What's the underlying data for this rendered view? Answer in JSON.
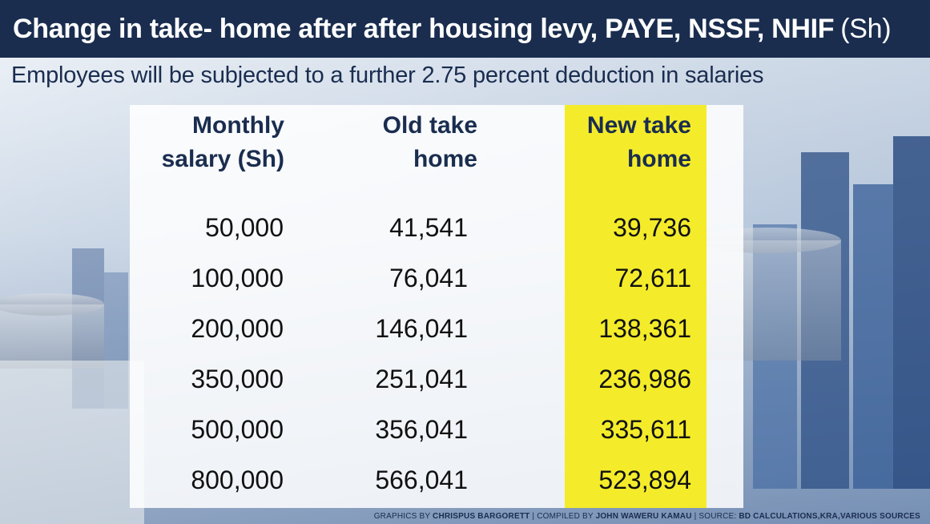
{
  "title": "Change in take- home after after housing levy, PAYE, NSSF, NHIF",
  "title_unit": "(Sh)",
  "subtitle": "Employees will be subjected to a further 2.75 percent deduction in salaries",
  "credits": {
    "graphics_prefix": "GRAPHICS BY",
    "graphics_name": "CHRISPUS BARGORETT",
    "compiled_prefix": "| COMPILED BY",
    "compiled_name": "JOHN WAWERU KAMAU",
    "source_prefix": "| SOURCE:",
    "source_name": "BD CALCULATIONS,KRA,VARIOUS SOURCES"
  },
  "colors": {
    "title_bg": "#1a2d4f",
    "text_navy": "#1a2d4f",
    "highlight_yellow": "#f4ec2a"
  },
  "chart_data": {
    "type": "table",
    "columns": [
      {
        "line1": "Monthly",
        "line2": "salary (Sh)"
      },
      {
        "line1": "Old take",
        "line2": "home"
      },
      {
        "line1": "New take",
        "line2": "home"
      }
    ],
    "rows": [
      [
        "50,000",
        "41,541",
        "39,736"
      ],
      [
        "100,000",
        "76,041",
        "72,611"
      ],
      [
        "200,000",
        "146,041",
        "138,361"
      ],
      [
        "350,000",
        "251,041",
        "236,986"
      ],
      [
        "500,000",
        "356,041",
        "335,611"
      ],
      [
        "800,000",
        "566,041",
        "523,894"
      ]
    ],
    "highlighted_column": 2
  }
}
